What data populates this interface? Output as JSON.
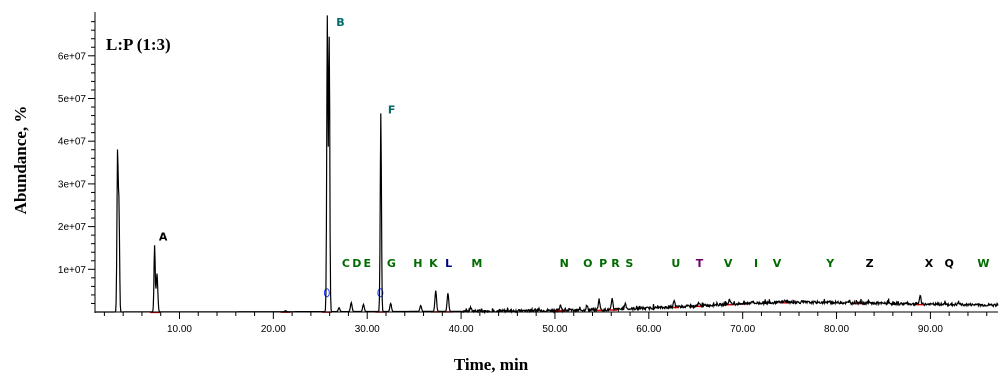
{
  "chart_data": {
    "type": "line",
    "title": "",
    "annotation": "L:P (1:3)",
    "xlabel": "Time, min",
    "ylabel": "Abundance, %",
    "xlim": [
      1.0,
      97.2
    ],
    "ylim": [
      0,
      70000000
    ],
    "x_ticks": [
      10,
      20,
      30,
      40,
      50,
      60,
      70,
      80,
      90
    ],
    "x_tick_labels": [
      "10.00",
      "20.00",
      "30.00",
      "40.00",
      "50.00",
      "60.00",
      "70.00",
      "80.00",
      "90.00"
    ],
    "y_ticks": [
      10000000,
      20000000,
      30000000,
      40000000,
      50000000,
      60000000
    ],
    "y_tick_labels": [
      "1e+07",
      "2e+07",
      "3e+07",
      "4e+07",
      "5e+07",
      "6e+07"
    ],
    "grid": false,
    "series": [
      {
        "values_note": "",
        "peaks": [
          {
            "x": 3.4,
            "y": 36500000
          },
          {
            "x": 3.55,
            "y": 25000000
          },
          {
            "x": 7.35,
            "y": 15500000
          },
          {
            "x": 7.6,
            "y": 9000000
          },
          {
            "x": 21.3,
            "y": 300000
          },
          {
            "x": 25.75,
            "y": 69000000
          },
          {
            "x": 25.95,
            "y": 64000000
          },
          {
            "x": 27.0,
            "y": 1000000
          },
          {
            "x": 28.3,
            "y": 2200000
          },
          {
            "x": 29.6,
            "y": 1800000
          },
          {
            "x": 31.45,
            "y": 46500000
          },
          {
            "x": 32.5,
            "y": 2000000
          },
          {
            "x": 35.7,
            "y": 1500000
          },
          {
            "x": 37.3,
            "y": 5000000
          },
          {
            "x": 38.6,
            "y": 4400000
          },
          {
            "x": 41.0,
            "y": 1000000
          },
          {
            "x": 50.6,
            "y": 1700000
          },
          {
            "x": 53.4,
            "y": 1500000
          },
          {
            "x": 54.7,
            "y": 3000000
          },
          {
            "x": 56.1,
            "y": 2800000
          },
          {
            "x": 57.5,
            "y": 2000000
          },
          {
            "x": 62.7,
            "y": 2500000
          },
          {
            "x": 65.3,
            "y": 2200000
          },
          {
            "x": 68.6,
            "y": 3000000
          },
          {
            "x": 71.0,
            "y": 2600000
          },
          {
            "x": 74.5,
            "y": 2700000
          },
          {
            "x": 82.5,
            "y": 2500000
          },
          {
            "x": 88.9,
            "y": 3800000
          },
          {
            "x": 93.0,
            "y": 2200000
          }
        ],
        "baseline": [
          {
            "x": 1.0,
            "y": 0
          },
          {
            "x": 40.0,
            "y": 150000
          },
          {
            "x": 55.0,
            "y": 500000
          },
          {
            "x": 60.0,
            "y": 900000
          },
          {
            "x": 65.0,
            "y": 1400000
          },
          {
            "x": 70.0,
            "y": 2000000
          },
          {
            "x": 75.0,
            "y": 2300000
          },
          {
            "x": 80.0,
            "y": 2200000
          },
          {
            "x": 85.0,
            "y": 2000000
          },
          {
            "x": 90.0,
            "y": 1800000
          },
          {
            "x": 97.2,
            "y": 1600000
          }
        ]
      }
    ],
    "peak_labels": [
      {
        "text": "A",
        "x": 7.8,
        "y": 16800000,
        "color": "#000000"
      },
      {
        "text": "B",
        "x": 26.7,
        "y": 67000000,
        "color": "#006b6b"
      },
      {
        "text": "F",
        "x": 32.2,
        "y": 46500000,
        "color": "#006b6b"
      },
      {
        "text": "C",
        "x": 27.3,
        "y": 10500000,
        "color": "#006b00"
      },
      {
        "text": "D",
        "x": 28.4,
        "y": 10500000,
        "color": "#006b00"
      },
      {
        "text": "E",
        "x": 29.6,
        "y": 10500000,
        "color": "#006b00"
      },
      {
        "text": "G",
        "x": 32.1,
        "y": 10500000,
        "color": "#006b00"
      },
      {
        "text": "H",
        "x": 34.9,
        "y": 10500000,
        "color": "#006b00"
      },
      {
        "text": "K",
        "x": 36.6,
        "y": 10500000,
        "color": "#006b00"
      },
      {
        "text": "L",
        "x": 38.3,
        "y": 10500000,
        "color": "#000080"
      },
      {
        "text": "M",
        "x": 41.1,
        "y": 10500000,
        "color": "#006b00"
      },
      {
        "text": "N",
        "x": 50.5,
        "y": 10500000,
        "color": "#006b00"
      },
      {
        "text": "O",
        "x": 53.0,
        "y": 10500000,
        "color": "#006b00"
      },
      {
        "text": "P",
        "x": 54.7,
        "y": 10500000,
        "color": "#006b00"
      },
      {
        "text": "R",
        "x": 56.0,
        "y": 10500000,
        "color": "#006b00"
      },
      {
        "text": "S",
        "x": 57.5,
        "y": 10500000,
        "color": "#006b00"
      },
      {
        "text": "U",
        "x": 62.4,
        "y": 10500000,
        "color": "#006b00"
      },
      {
        "text": "T",
        "x": 65.0,
        "y": 10500000,
        "color": "#6b006b"
      },
      {
        "text": "V",
        "x": 68.0,
        "y": 10500000,
        "color": "#006b00"
      },
      {
        "text": "I",
        "x": 71.2,
        "y": 10500000,
        "color": "#006b00"
      },
      {
        "text": "V",
        "x": 73.2,
        "y": 10500000,
        "color": "#006b00"
      },
      {
        "text": "Y",
        "x": 78.9,
        "y": 10500000,
        "color": "#006b00"
      },
      {
        "text": "Z",
        "x": 83.1,
        "y": 10500000,
        "color": "#000000"
      },
      {
        "text": "X",
        "x": 89.4,
        "y": 10500000,
        "color": "#000000"
      },
      {
        "text": "Q",
        "x": 91.5,
        "y": 10500000,
        "color": "#000000"
      },
      {
        "text": "W",
        "x": 95.0,
        "y": 10500000,
        "color": "#006b00"
      }
    ]
  }
}
